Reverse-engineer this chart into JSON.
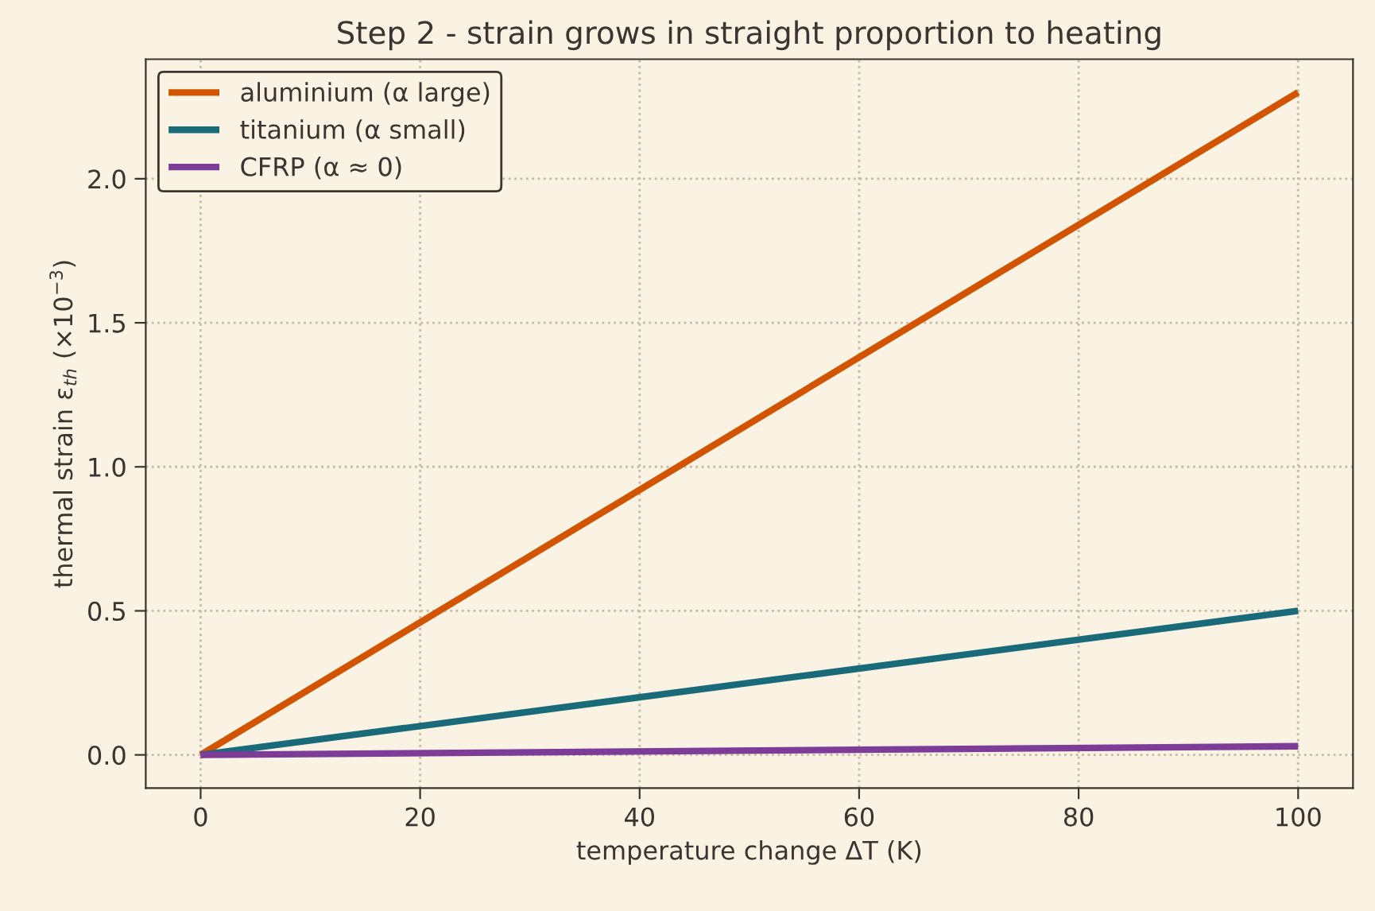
{
  "chart_data": {
    "type": "line",
    "title": "Step 2 - strain grows in straight proportion to heating",
    "xlabel": "temperature change ΔT (K)",
    "ylabel": "thermal strain ε$_{th}$ (×10$^{−3}$)",
    "x": [
      0,
      100
    ],
    "series": [
      {
        "name": "aluminium (α large)",
        "color": "#d35400",
        "values": [
          0,
          2.3
        ]
      },
      {
        "name": "titanium (α small)",
        "color": "#1a6b7a",
        "values": [
          0,
          0.5
        ]
      },
      {
        "name": "CFRP (α ≈ 0)",
        "color": "#7d3c98",
        "values": [
          0,
          0.03
        ]
      }
    ],
    "xlim": [
      -5,
      105
    ],
    "xticks": [
      0,
      20,
      40,
      60,
      80,
      100
    ],
    "ylim": [
      -0.115,
      2.415
    ],
    "yticks": [
      {
        "value": 0,
        "label": "0.0"
      },
      {
        "value": 0.5,
        "label": "0.5"
      },
      {
        "value": 1,
        "label": "1.0"
      },
      {
        "value": 1.5,
        "label": "1.5"
      },
      {
        "value": 2,
        "label": "2.0"
      }
    ],
    "grid": true,
    "legend": "top left",
    "marker": "none",
    "line_style": "solid"
  }
}
